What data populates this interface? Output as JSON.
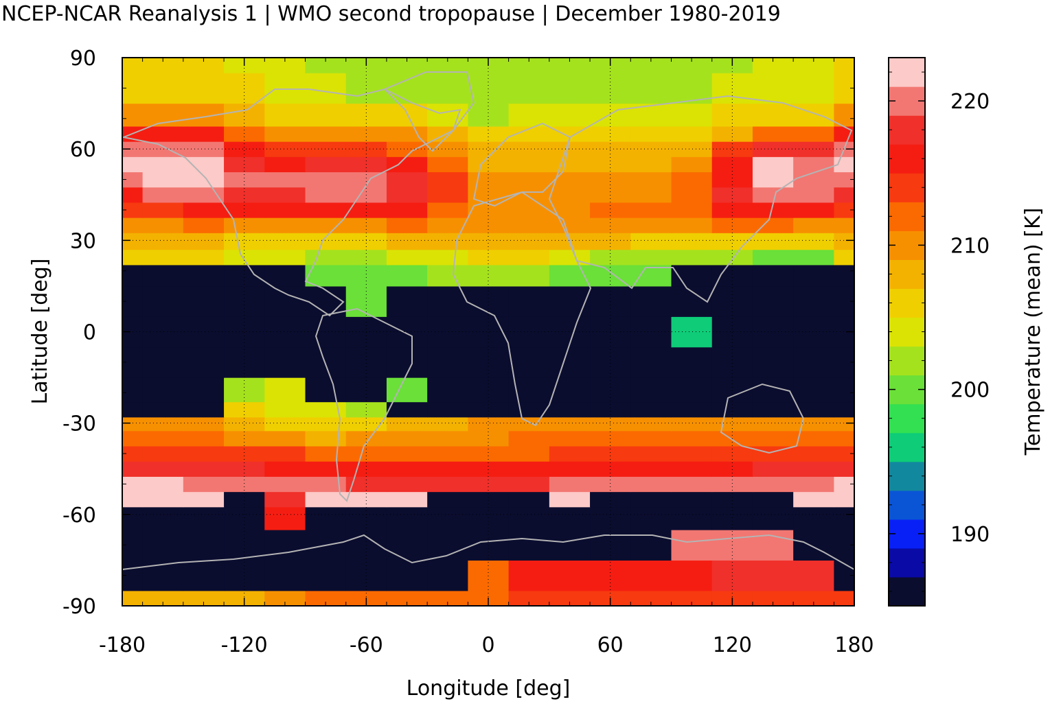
{
  "chart_data": {
    "type": "heatmap",
    "title": "NCEP-NCAR Reanalysis 1 | WMO second tropopause | December 1980-2019",
    "xlabel": "Longitude [deg]",
    "ylabel": "Latitude [deg]",
    "colorbar_label": "Temperature (mean) [K]",
    "xlim": [
      -180,
      180
    ],
    "ylim": [
      -90,
      90
    ],
    "xticks": [
      "-180",
      "-120",
      "-60",
      "0",
      "60",
      "120",
      "180"
    ],
    "yticks": [
      "90",
      "60",
      "30",
      "0",
      "-30",
      "-60",
      "-90"
    ],
    "xtick_values": [
      -180,
      -120,
      -60,
      0,
      60,
      120,
      180
    ],
    "ytick_values": [
      90,
      60,
      30,
      0,
      -30,
      -60,
      -90
    ],
    "colorbar_ticks": [
      "190",
      "200",
      "210",
      "220"
    ],
    "colorbar_tick_values": [
      190,
      200,
      210,
      220
    ],
    "colorbar_range": [
      185,
      223
    ],
    "grid": "dotted",
    "colormap": [
      "#0b0d2f",
      "#0a0aa6",
      "#0820f5",
      "#0a55d6",
      "#12889e",
      "#0ecc78",
      "#32e052",
      "#6ae038",
      "#a5e21e",
      "#dbe304",
      "#efcf00",
      "#f4b200",
      "#f79000",
      "#fb6a00",
      "#f73a10",
      "#f51d12",
      "#f0302a",
      "#f27772",
      "#fccac8"
    ],
    "coastline_color": "#b4b4b4",
    "latitudes": [
      -90,
      -80,
      -70,
      -60,
      -55,
      -50,
      -45,
      -40,
      -35,
      -30,
      -26,
      -20,
      -10,
      0,
      10,
      20,
      24,
      30,
      35,
      40,
      45,
      50,
      55,
      60,
      65,
      70,
      80,
      90
    ],
    "longitudes": [
      -180,
      -160,
      -140,
      -120,
      -100,
      -80,
      -60,
      -40,
      -20,
      0,
      20,
      40,
      60,
      80,
      100,
      120,
      140,
      160,
      180
    ],
    "values": [
      [
        207,
        207,
        207,
        207,
        209,
        212,
        212,
        212,
        212,
        212,
        213,
        213,
        213,
        213,
        213,
        213,
        213,
        213,
        213
      ],
      [
        186,
        186,
        186,
        186,
        186,
        186,
        186,
        186,
        186,
        212,
        216,
        216,
        216,
        216,
        216,
        218,
        218,
        218,
        186
      ],
      [
        186,
        186,
        186,
        186,
        186,
        186,
        186,
        186,
        186,
        186,
        186,
        186,
        186,
        186,
        220,
        220,
        220,
        186,
        186
      ],
      [
        186,
        186,
        186,
        186,
        216,
        186,
        186,
        186,
        186,
        186,
        186,
        186,
        186,
        186,
        186,
        186,
        186,
        186,
        186
      ],
      [
        222,
        222,
        222,
        186,
        217,
        222,
        222,
        222,
        186,
        186,
        186,
        222,
        186,
        186,
        186,
        186,
        186,
        222,
        222
      ],
      [
        221,
        221,
        220,
        220,
        220,
        219,
        218,
        218,
        218,
        218,
        218,
        219,
        219,
        219,
        220,
        220,
        220,
        220,
        221
      ],
      [
        217,
        217,
        217,
        217,
        216,
        216,
        215,
        215,
        215,
        215,
        216,
        216,
        216,
        216,
        216,
        216,
        217,
        217,
        217
      ],
      [
        214,
        214,
        214,
        213,
        213,
        212,
        212,
        212,
        212,
        212,
        212,
        213,
        213,
        213,
        213,
        213,
        213,
        213,
        214
      ],
      [
        211,
        211,
        211,
        210,
        209,
        208,
        209,
        210,
        210,
        210,
        211,
        211,
        211,
        211,
        211,
        211,
        211,
        211,
        211
      ],
      [
        210,
        210,
        209,
        207,
        206,
        205,
        206,
        207,
        208,
        209,
        209,
        209,
        209,
        209,
        209,
        209,
        209,
        209,
        209
      ],
      [
        186,
        186,
        186,
        206,
        204,
        203,
        202,
        186,
        186,
        186,
        186,
        186,
        186,
        186,
        186,
        186,
        186,
        186,
        186
      ],
      [
        186,
        186,
        186,
        201,
        204,
        186,
        186,
        200,
        186,
        186,
        186,
        186,
        186,
        186,
        186,
        186,
        186,
        186,
        186
      ],
      [
        186,
        186,
        186,
        186,
        186,
        186,
        186,
        186,
        186,
        186,
        186,
        186,
        186,
        186,
        186,
        186,
        186,
        186,
        186
      ],
      [
        186,
        186,
        186,
        186,
        186,
        186,
        186,
        186,
        186,
        186,
        186,
        186,
        186,
        186,
        196,
        186,
        186,
        186,
        186
      ],
      [
        186,
        186,
        186,
        186,
        186,
        186,
        200,
        186,
        186,
        186,
        186,
        186,
        186,
        186,
        186,
        186,
        186,
        186,
        186
      ],
      [
        186,
        186,
        186,
        186,
        186,
        200,
        200,
        200,
        202,
        202,
        201,
        199,
        199,
        200,
        186,
        186,
        186,
        186,
        186
      ],
      [
        205,
        205,
        205,
        204,
        203,
        202,
        202,
        203,
        204,
        205,
        205,
        203,
        202,
        202,
        201,
        201,
        199,
        199,
        205
      ],
      [
        207,
        207,
        208,
        206,
        205,
        205,
        206,
        207,
        208,
        208,
        208,
        207,
        207,
        206,
        206,
        206,
        205,
        205,
        207
      ],
      [
        210,
        210,
        211,
        210,
        209,
        210,
        210,
        211,
        210,
        210,
        210,
        210,
        210,
        210,
        210,
        211,
        211,
        210,
        210
      ],
      [
        213,
        214,
        216,
        215,
        215,
        216,
        216,
        215,
        212,
        210,
        210,
        210,
        211,
        211,
        211,
        215,
        216,
        215,
        214
      ],
      [
        216,
        219,
        220,
        218,
        218,
        220,
        220,
        218,
        213,
        210,
        210,
        210,
        210,
        210,
        212,
        217,
        220,
        219,
        217
      ],
      [
        220,
        222,
        222,
        219,
        219,
        220,
        220,
        218,
        213,
        210,
        209,
        209,
        209,
        209,
        211,
        216,
        222,
        220,
        220
      ],
      [
        222,
        222,
        221,
        217,
        216,
        218,
        218,
        215,
        211,
        208,
        208,
        208,
        208,
        208,
        209,
        216,
        222,
        220,
        222
      ],
      [
        219,
        219,
        219,
        215,
        213,
        214,
        214,
        212,
        210,
        207,
        207,
        207,
        207,
        207,
        207,
        214,
        218,
        217,
        219
      ],
      [
        215,
        215,
        215,
        211,
        210,
        210,
        210,
        209,
        207,
        205,
        205,
        205,
        205,
        205,
        205,
        208,
        212,
        212,
        215
      ],
      [
        210,
        210,
        210,
        207,
        206,
        205,
        205,
        205,
        203,
        202,
        203,
        203,
        203,
        203,
        203,
        205,
        206,
        206,
        210
      ],
      [
        206,
        206,
        206,
        205,
        204,
        203,
        202,
        202,
        201,
        201,
        201,
        201,
        202,
        202,
        202,
        203,
        204,
        204,
        206
      ],
      [
        205,
        205,
        205,
        204,
        203,
        202,
        202,
        201,
        201,
        201,
        201,
        201,
        201,
        202,
        202,
        202,
        203,
        203,
        205
      ]
    ]
  }
}
